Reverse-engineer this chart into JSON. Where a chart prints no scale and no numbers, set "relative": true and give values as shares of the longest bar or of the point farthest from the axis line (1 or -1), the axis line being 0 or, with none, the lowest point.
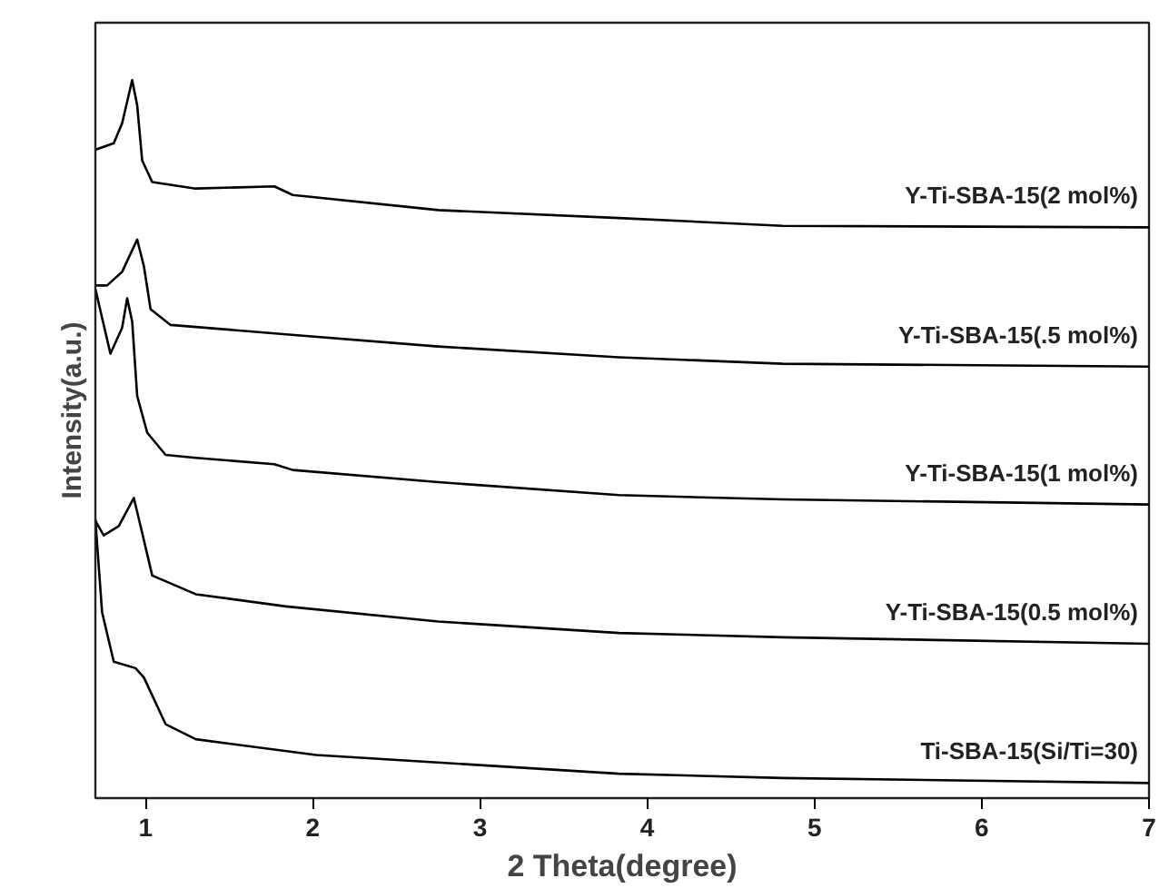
{
  "chart_data": {
    "type": "line",
    "xlabel": "2 Theta(degree)",
    "ylabel": "Intensity(a.u.)",
    "relative": true,
    "tick_labels": "x",
    "xlim": [
      0.7,
      7
    ],
    "xticks": [
      1,
      2,
      3,
      4,
      5,
      6,
      7
    ],
    "series": [
      {
        "name": "Y-Ti-SBA-15(2 mol%)",
        "color": "#000000",
        "x": [
          0.7,
          0.81,
          0.86,
          0.92,
          0.95,
          0.98,
          1.04,
          1.3,
          1.77,
          1.88,
          2.75,
          3.83,
          4.81,
          7.0
        ],
        "values": [
          0.903,
          0.912,
          0.94,
          1.0,
          0.965,
          0.888,
          0.858,
          0.849,
          0.852,
          0.84,
          0.819,
          0.808,
          0.797,
          0.795
        ]
      },
      {
        "name": "Y-Ti-SBA-15(.5 mol%)",
        "color": "#000000",
        "x": [
          0.7,
          0.77,
          0.86,
          0.95,
          0.99,
          1.03,
          1.15,
          1.84,
          2.75,
          3.83,
          4.81,
          7.0
        ],
        "values": [
          0.714,
          0.714,
          0.733,
          0.778,
          0.741,
          0.681,
          0.659,
          0.646,
          0.629,
          0.614,
          0.605,
          0.601
        ]
      },
      {
        "name": "Y-Ti-SBA-15(1 mol%)",
        "color": "#000000",
        "x": [
          0.7,
          0.79,
          0.86,
          0.89,
          0.92,
          0.95,
          1.01,
          1.12,
          1.3,
          1.77,
          1.88,
          2.75,
          3.83,
          4.81,
          7.0
        ],
        "values": [
          0.709,
          0.619,
          0.655,
          0.696,
          0.664,
          0.56,
          0.509,
          0.478,
          0.474,
          0.465,
          0.457,
          0.44,
          0.422,
          0.416,
          0.409
        ]
      },
      {
        "name": "Y-Ti-SBA-15(0.5 mol%)",
        "color": "#000000",
        "x": [
          0.7,
          0.75,
          0.84,
          0.93,
          0.97,
          1.04,
          1.3,
          1.84,
          2.75,
          3.83,
          4.81,
          7.0
        ],
        "values": [
          0.386,
          0.366,
          0.379,
          0.418,
          0.379,
          0.31,
          0.284,
          0.267,
          0.246,
          0.23,
          0.224,
          0.215
        ]
      },
      {
        "name": "Ti-SBA-15(Si/Ti=30)",
        "color": "#000000",
        "x": [
          0.7,
          0.74,
          0.81,
          0.94,
          0.99,
          1.12,
          1.3,
          2.02,
          3.83,
          4.81,
          7.0
        ],
        "values": [
          0.388,
          0.259,
          0.19,
          0.181,
          0.168,
          0.103,
          0.082,
          0.06,
          0.034,
          0.028,
          0.021
        ]
      }
    ]
  }
}
